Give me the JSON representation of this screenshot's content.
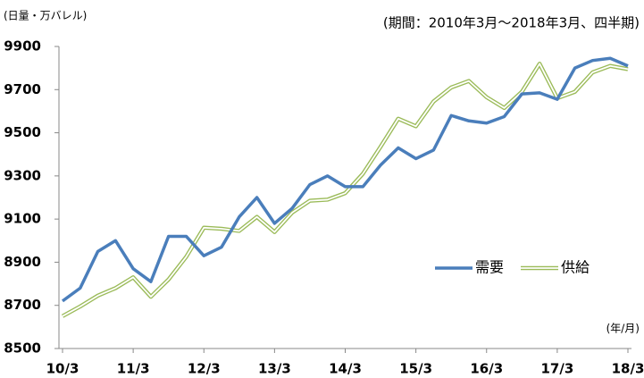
{
  "chart_data": {
    "type": "line",
    "unit_label": "(日量・万バレル)",
    "period_note": "(期間：2010年3月～2018年3月、四半期)",
    "x_axis_label": "(年/月)",
    "categories": [
      "10/3",
      null,
      null,
      null,
      "11/3",
      null,
      null,
      null,
      "12/3",
      null,
      null,
      null,
      "13/3",
      null,
      null,
      null,
      "14/3",
      null,
      null,
      null,
      "15/3",
      null,
      null,
      null,
      "16/3",
      null,
      null,
      null,
      "17/3",
      null,
      null,
      null,
      "18/3"
    ],
    "series": [
      {
        "name": "需要",
        "color": "#4a7ebb",
        "style": "solid",
        "values": [
          8720,
          8780,
          8950,
          9000,
          8870,
          8810,
          9020,
          9020,
          8930,
          8970,
          9110,
          9200,
          9080,
          9150,
          9260,
          9300,
          9250,
          9250,
          9350,
          9430,
          9380,
          9420,
          9580,
          9555,
          9545,
          9575,
          9680,
          9685,
          9655,
          9800,
          9835,
          9845,
          9810
        ]
      },
      {
        "name": "供給",
        "color": "#9bbb59",
        "style": "outline",
        "values": [
          8650,
          8695,
          8745,
          8780,
          8830,
          8740,
          8820,
          8925,
          9060,
          9055,
          9045,
          9110,
          9040,
          9130,
          9185,
          9190,
          9220,
          9310,
          9435,
          9565,
          9530,
          9645,
          9710,
          9740,
          9665,
          9615,
          9690,
          9820,
          9660,
          9690,
          9780,
          9810,
          9795
        ]
      }
    ],
    "ylim": [
      8500,
      9900
    ],
    "yticks": [
      8500,
      8700,
      8900,
      9100,
      9300,
      9500,
      9700,
      9900
    ],
    "grid": false,
    "legend": "right"
  }
}
